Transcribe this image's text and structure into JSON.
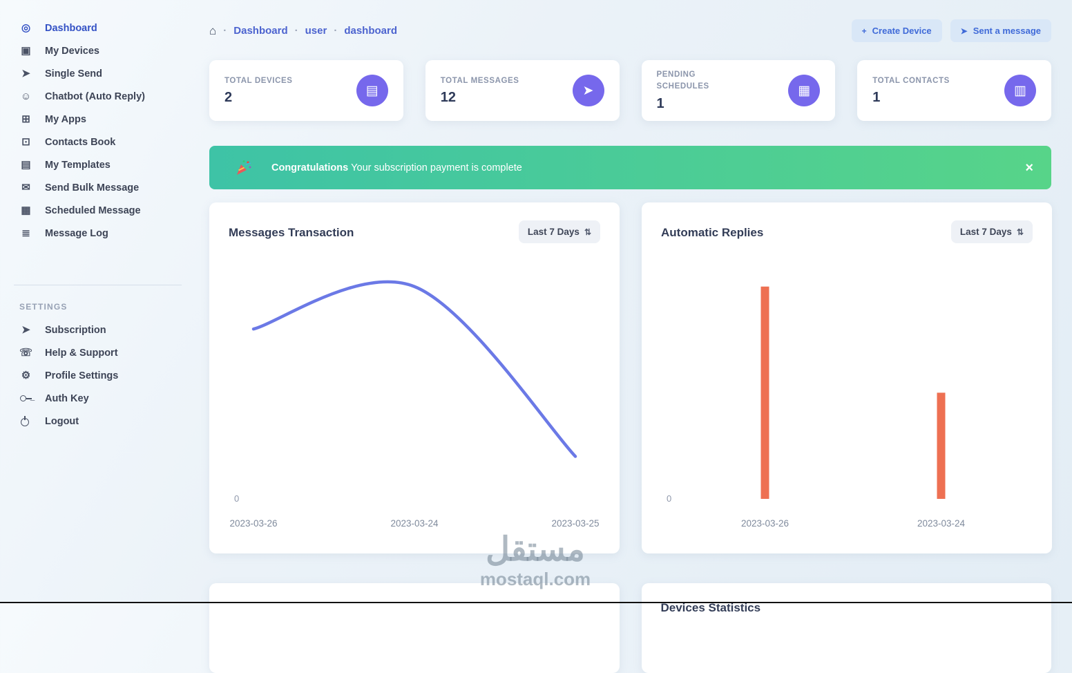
{
  "colors": {
    "accent_blue": "#3f6ad8",
    "active_link": "#3452c5",
    "purple_icon_bg": "#7668ec",
    "banner_gradient_start": "#3ec3a6",
    "banner_gradient_end": "#57d489",
    "line_color": "#6b79e6",
    "bar_color": "#ee7052"
  },
  "sidebar": {
    "main_items": [
      {
        "label": "Dashboard",
        "icon": "dashboard-icon",
        "active": true
      },
      {
        "label": "My Devices",
        "icon": "devices-icon",
        "active": false
      },
      {
        "label": "Single Send",
        "icon": "single-send-icon",
        "active": false
      },
      {
        "label": "Chatbot (Auto Reply)",
        "icon": "chatbot-icon",
        "active": false
      },
      {
        "label": "My Apps",
        "icon": "apps-grid-icon",
        "active": false
      },
      {
        "label": "Contacts Book",
        "icon": "contacts-book-icon",
        "active": false
      },
      {
        "label": "My Templates",
        "icon": "templates-icon",
        "active": false
      },
      {
        "label": "Send Bulk Message",
        "icon": "bulk-message-icon",
        "active": false
      },
      {
        "label": "Scheduled Message",
        "icon": "scheduled-message-icon",
        "active": false
      },
      {
        "label": "Message Log",
        "icon": "message-log-icon",
        "active": false
      }
    ],
    "settings_header": "SETTINGS",
    "settings_items": [
      {
        "label": "Subscription",
        "icon": "subscription-icon",
        "active": false
      },
      {
        "label": "Help & Support",
        "icon": "help-support-icon",
        "active": false
      },
      {
        "label": "Profile Settings",
        "icon": "gear-icon",
        "active": false
      },
      {
        "label": "Auth Key",
        "icon": "key-icon",
        "active": false
      },
      {
        "label": "Logout",
        "icon": "power-icon",
        "active": false
      }
    ]
  },
  "header": {
    "breadcrumb": [
      "Dashboard",
      "user",
      "dashboard"
    ],
    "actions": {
      "create_device": "Create Device",
      "send_message": "Sent a message"
    }
  },
  "stats": [
    {
      "label": "TOTAL DEVICES",
      "value": "2",
      "icon": "server-stack-icon"
    },
    {
      "label": "TOTAL MESSAGES",
      "value": "12",
      "icon": "paper-plane-icon"
    },
    {
      "label": "PENDING SCHEDULES",
      "value": "1",
      "icon": "calendar-icon"
    },
    {
      "label": "TOTAL CONTACTS",
      "value": "1",
      "icon": "address-book-icon"
    }
  ],
  "banner": {
    "title": "Congratulations",
    "message": "Your subscription payment is complete"
  },
  "chart_data": [
    {
      "type": "line",
      "title": "Messages Transaction",
      "range_selector": "Last 7 Days",
      "x": [
        "2023-03-26",
        "2023-03-24",
        "2023-03-25"
      ],
      "values": [
        8,
        10,
        2
      ],
      "ylim": [
        0,
        11
      ],
      "y_ticks_shown": [
        "0"
      ],
      "grid": false,
      "legend": false
    },
    {
      "type": "bar",
      "title": "Automatic Replies",
      "range_selector": "Last 7 Days",
      "categories": [
        "2023-03-26",
        "2023-03-24"
      ],
      "values": [
        10,
        5
      ],
      "ylim": [
        0,
        11
      ],
      "y_ticks_shown": [
        "0"
      ],
      "grid": false,
      "legend": false
    }
  ],
  "bottom": {
    "devices_statistics_title": "Devices Statistics"
  },
  "watermark": {
    "line1": "مستقل",
    "line2": "mostaql.com"
  }
}
